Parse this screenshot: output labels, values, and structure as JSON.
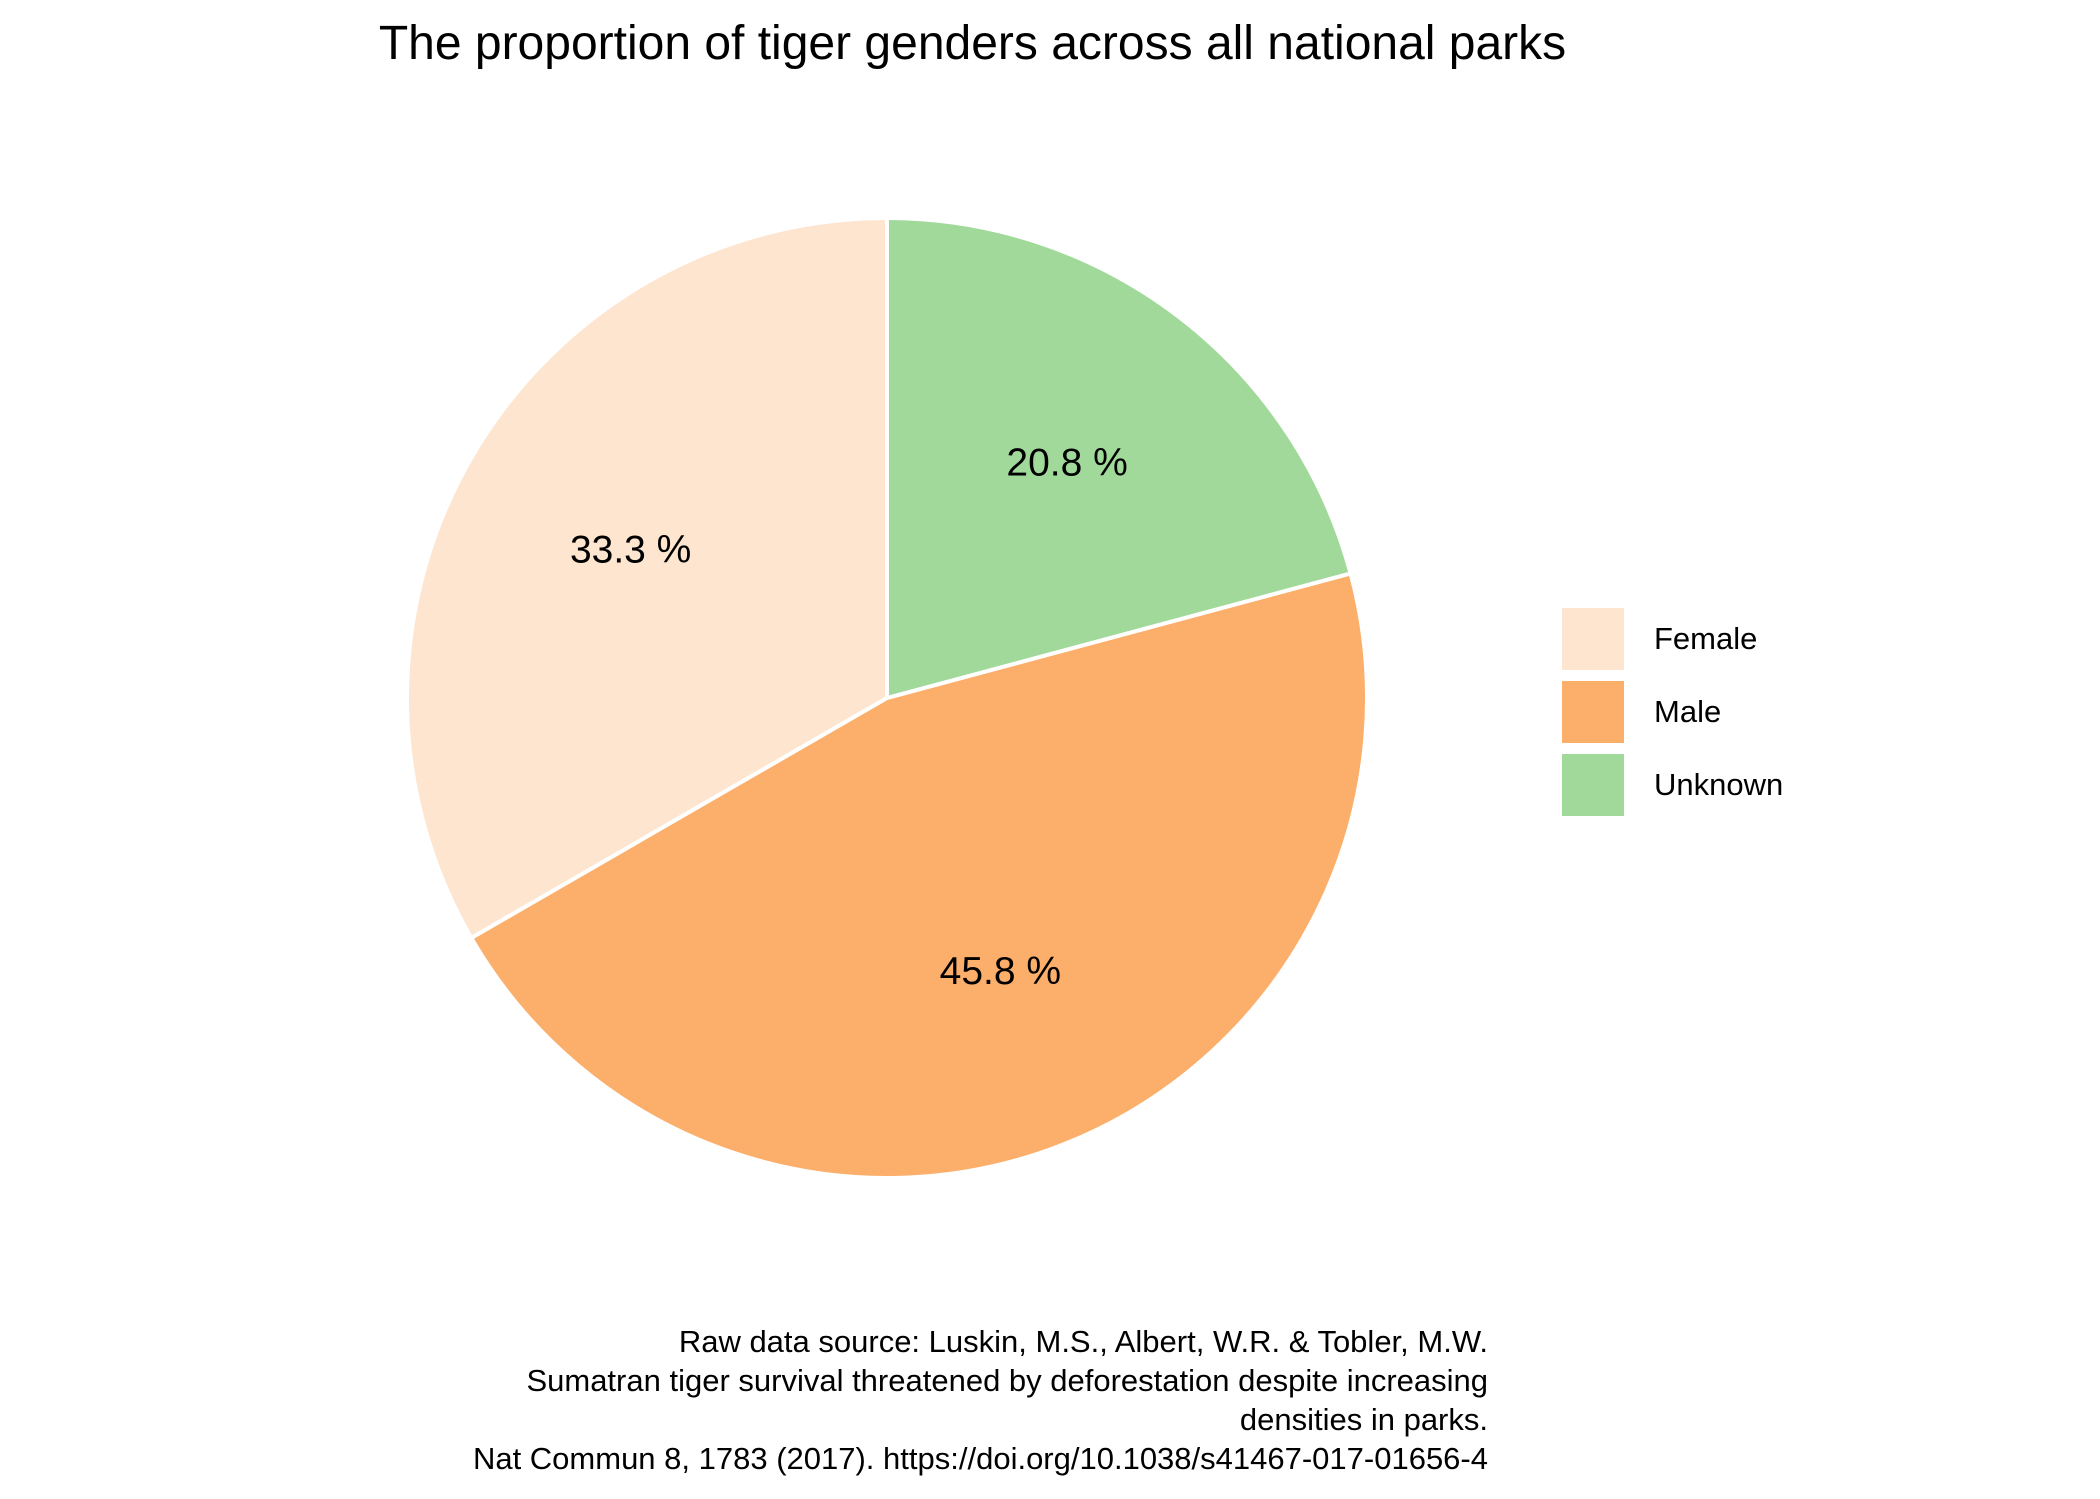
{
  "chart_data": {
    "type": "pie",
    "title": "The proportion of tiger genders across all national parks",
    "categories": [
      "Female",
      "Male",
      "Unknown"
    ],
    "values": [
      33.3,
      45.8,
      20.8
    ],
    "slice_labels": [
      "33.3 %",
      "45.8 %",
      "20.8 %"
    ],
    "colors": [
      "#fde5cf",
      "#fcae6b",
      "#a1d99b"
    ],
    "start_angle_deg": 0,
    "direction": "counterclockwise",
    "slice_border_color": "#ffffff",
    "legend": {
      "placement": "right",
      "entries": [
        {
          "label": "Female",
          "color": "#fde5cf"
        },
        {
          "label": "Male",
          "color": "#fcae6b"
        },
        {
          "label": "Unknown",
          "color": "#a1d99b"
        }
      ]
    },
    "caption": [
      "Raw data source: Luskin, M.S., Albert, W.R. & Tobler, M.W.",
      "Sumatran tiger survival threatened by deforestation despite increasing",
      "densities in parks.",
      "Nat Commun 8, 1783 (2017). https://doi.org/10.1038/s41467-017-01656-4"
    ]
  }
}
